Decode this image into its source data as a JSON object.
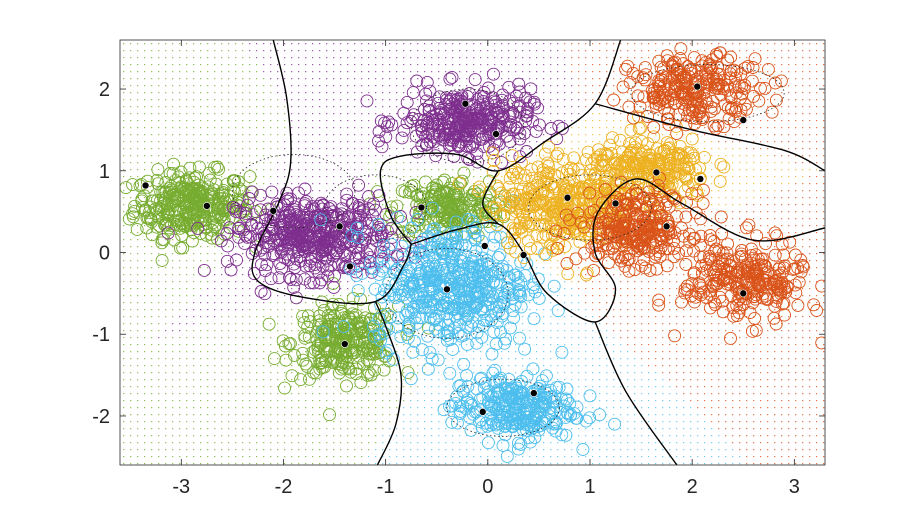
{
  "chart_data": {
    "type": "scatter",
    "title": "",
    "xlabel": "",
    "ylabel": "",
    "xlim": [
      -3.6,
      3.3
    ],
    "ylim": [
      -2.6,
      2.6
    ],
    "xticks": [
      -3,
      -2,
      -1,
      0,
      1,
      2,
      3
    ],
    "xtick_labels": [
      "-3",
      "-2",
      "-1",
      "0",
      "1",
      "2",
      "3"
    ],
    "yticks": [
      -2,
      -1,
      0,
      1,
      2
    ],
    "ytick_labels": [
      "-2",
      "-1",
      "0",
      "1",
      "2"
    ],
    "grid": false,
    "legend": "none",
    "colors": {
      "green": "#77ac30",
      "purple": "#7e2f8e",
      "blue": "#4dbeee",
      "yellow": "#edb120",
      "orange": "#d95319",
      "boundary": "#000000",
      "center": "#000000"
    },
    "clusters": [
      {
        "color": "green",
        "center": [
          -2.9,
          0.58
        ],
        "spread": [
          0.28,
          0.2
        ],
        "count": 320
      },
      {
        "color": "green",
        "center": [
          -1.4,
          -1.1
        ],
        "spread": [
          0.26,
          0.22
        ],
        "count": 260
      },
      {
        "color": "green",
        "center": [
          -0.4,
          0.55
        ],
        "spread": [
          0.26,
          0.18
        ],
        "count": 200
      },
      {
        "color": "purple",
        "center": [
          -1.7,
          0.2
        ],
        "spread": [
          0.38,
          0.24
        ],
        "count": 450
      },
      {
        "color": "purple",
        "center": [
          -0.22,
          1.6
        ],
        "spread": [
          0.32,
          0.2
        ],
        "count": 330
      },
      {
        "color": "blue",
        "center": [
          -0.35,
          -0.4
        ],
        "spread": [
          0.38,
          0.38
        ],
        "count": 500
      },
      {
        "color": "blue",
        "center": [
          0.25,
          -1.9
        ],
        "spread": [
          0.3,
          0.2
        ],
        "count": 280
      },
      {
        "color": "yellow",
        "center": [
          0.75,
          0.6
        ],
        "spread": [
          0.35,
          0.28
        ],
        "count": 380
      },
      {
        "color": "yellow",
        "center": [
          1.6,
          1.0
        ],
        "spread": [
          0.3,
          0.2
        ],
        "count": 240
      },
      {
        "color": "orange",
        "center": [
          1.45,
          0.3
        ],
        "spread": [
          0.28,
          0.22
        ],
        "count": 280
      },
      {
        "color": "orange",
        "center": [
          2.5,
          -0.35
        ],
        "spread": [
          0.3,
          0.25
        ],
        "count": 260
      },
      {
        "color": "orange",
        "center": [
          2.05,
          2.0
        ],
        "spread": [
          0.32,
          0.2
        ],
        "count": 260
      }
    ],
    "centers": [
      [
        -3.35,
        0.82
      ],
      [
        -2.75,
        0.57
      ],
      [
        -2.1,
        0.51
      ],
      [
        -1.45,
        0.32
      ],
      [
        -1.35,
        -0.17
      ],
      [
        -1.4,
        -1.12
      ],
      [
        -0.65,
        0.55
      ],
      [
        -0.22,
        1.82
      ],
      [
        0.08,
        1.45
      ],
      [
        -0.4,
        -0.45
      ],
      [
        -0.03,
        0.08
      ],
      [
        0.35,
        -0.03
      ],
      [
        0.45,
        -1.72
      ],
      [
        -0.05,
        -1.95
      ],
      [
        0.78,
        0.67
      ],
      [
        1.25,
        0.6
      ],
      [
        1.65,
        0.98
      ],
      [
        2.08,
        0.9
      ],
      [
        1.75,
        0.32
      ],
      [
        2.05,
        2.03
      ],
      [
        2.5,
        1.62
      ],
      [
        2.5,
        -0.5
      ]
    ],
    "ellipses": [
      {
        "center": [
          -1.9,
          0.75
        ],
        "radii": [
          0.6,
          0.45
        ]
      },
      {
        "center": [
          -0.4,
          -0.5
        ],
        "radii": [
          0.6,
          0.55
        ]
      },
      {
        "center": [
          1.0,
          0.55
        ],
        "radii": [
          0.6,
          0.4
        ]
      },
      {
        "center": [
          2.15,
          1.95
        ],
        "radii": [
          0.75,
          0.35
        ]
      },
      {
        "center": [
          -1.1,
          0.55
        ],
        "radii": [
          0.5,
          0.4
        ]
      },
      {
        "center": [
          0.15,
          -1.9
        ],
        "radii": [
          0.55,
          0.35
        ]
      },
      {
        "center": [
          -0.2,
          1.55
        ],
        "radii": [
          0.55,
          0.45
        ]
      }
    ],
    "boundaries": [
      [
        [
          -2.1,
          2.6
        ],
        [
          -1.97,
          1.9
        ],
        [
          -1.93,
          1.1
        ],
        [
          -2.05,
          0.6
        ],
        [
          -2.28,
          0.0
        ],
        [
          -2.25,
          -0.35
        ],
        [
          -1.8,
          -0.55
        ],
        [
          -1.1,
          -0.6
        ],
        [
          -0.82,
          -0.15
        ],
        [
          -0.75,
          0.1
        ]
      ],
      [
        [
          -1.1,
          -0.6
        ],
        [
          -1.0,
          -0.9
        ],
        [
          -0.85,
          -1.5
        ],
        [
          -0.9,
          -2.1
        ],
        [
          -1.08,
          -2.6
        ]
      ],
      [
        [
          -0.75,
          0.1
        ],
        [
          -0.95,
          0.45
        ],
        [
          -1.05,
          1.0
        ],
        [
          -0.85,
          1.18
        ],
        [
          -0.3,
          1.2
        ],
        [
          0.1,
          1.0
        ],
        [
          0.55,
          1.35
        ],
        [
          1.05,
          1.82
        ],
        [
          1.3,
          2.6
        ]
      ],
      [
        [
          -0.75,
          0.1
        ],
        [
          -0.3,
          0.28
        ],
        [
          0.1,
          0.35
        ],
        [
          0.35,
          0.0
        ],
        [
          0.58,
          -0.5
        ],
        [
          1.05,
          -0.85
        ],
        [
          1.25,
          -0.45
        ],
        [
          1.05,
          0.0
        ],
        [
          1.08,
          0.5
        ],
        [
          1.45,
          0.9
        ],
        [
          1.9,
          0.6
        ],
        [
          2.6,
          0.15
        ],
        [
          3.3,
          0.3
        ]
      ],
      [
        [
          1.05,
          1.82
        ],
        [
          2.0,
          1.5
        ],
        [
          2.9,
          1.25
        ],
        [
          3.3,
          1.0
        ]
      ],
      [
        [
          0.1,
          1.0
        ],
        [
          -0.05,
          0.6
        ],
        [
          0.1,
          0.35
        ]
      ],
      [
        [
          1.05,
          -0.85
        ],
        [
          1.35,
          -1.7
        ],
        [
          1.85,
          -2.6
        ]
      ]
    ]
  }
}
